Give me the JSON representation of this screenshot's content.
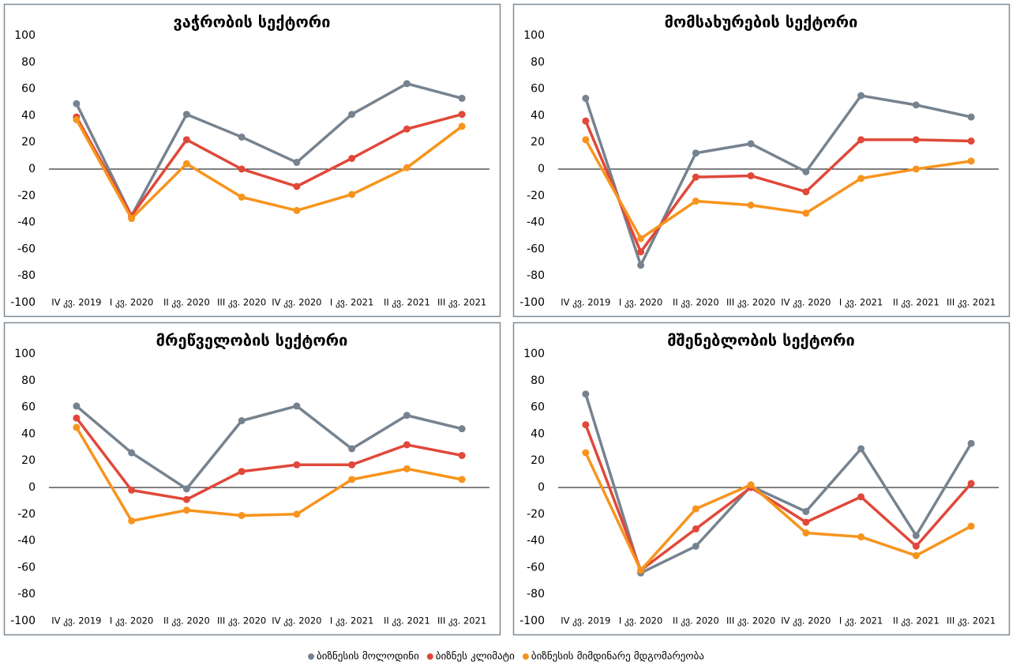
{
  "chart_data": [
    {
      "type": "line",
      "title": "ვაჭრობის სექტორი",
      "categories": [
        "IV კვ. 2019",
        "I კვ. 2020",
        "II კვ. 2020",
        "III კვ. 2020",
        "IV კვ. 2020",
        "I კვ. 2021",
        "II კვ. 2021",
        "III კვ. 2021"
      ],
      "series": [
        {
          "name": "ბიზნესის მოლოდინი",
          "color": "#76838f",
          "values": [
            49,
            -35,
            41,
            24,
            5,
            41,
            64,
            53
          ]
        },
        {
          "name": "ბიზნეს კლიმატი",
          "color": "#e0483a",
          "values": [
            39,
            -35,
            22,
            0,
            -13,
            8,
            30,
            41
          ]
        },
        {
          "name": "ბიზნესის მიმდინარე მდგომარეობა",
          "color": "#f7941d",
          "values": [
            37,
            -37,
            4,
            -21,
            -31,
            -19,
            1,
            32
          ]
        }
      ],
      "ylim": [
        -100,
        100
      ],
      "yticks": [
        -100,
        -80,
        -60,
        -40,
        -20,
        0,
        20,
        40,
        60,
        80,
        100
      ]
    },
    {
      "type": "line",
      "title": "მომსახურების სექტორი",
      "categories": [
        "IV კვ. 2019",
        "I კვ. 2020",
        "II კვ. 2020",
        "III კვ. 2020",
        "IV კვ. 2020",
        "I კვ. 2021",
        "II კვ. 2021",
        "III კვ. 2021"
      ],
      "series": [
        {
          "name": "ბიზნესის მოლოდინი",
          "color": "#76838f",
          "values": [
            53,
            -72,
            12,
            19,
            -2,
            55,
            48,
            39
          ]
        },
        {
          "name": "ბიზნეს კლიმატი",
          "color": "#e0483a",
          "values": [
            36,
            -62,
            -6,
            -5,
            -17,
            22,
            22,
            21
          ]
        },
        {
          "name": "ბიზნესის მიმდინარე მდგომარეობა",
          "color": "#f7941d",
          "values": [
            22,
            -52,
            -24,
            -27,
            -33,
            -7,
            0,
            6
          ]
        }
      ],
      "ylim": [
        -100,
        100
      ],
      "yticks": [
        -100,
        -80,
        -60,
        -40,
        -20,
        0,
        20,
        40,
        60,
        80,
        100
      ]
    },
    {
      "type": "line",
      "title": "მრეწველობის სექტორი",
      "categories": [
        "IV კვ. 2019",
        "I კვ. 2020",
        "II კვ. 2020",
        "III კვ. 2020",
        "IV კვ. 2020",
        "I კვ. 2021",
        "II კვ. 2021",
        "III კვ. 2021"
      ],
      "series": [
        {
          "name": "ბიზნესის მოლოდინი",
          "color": "#76838f",
          "values": [
            61,
            26,
            -1,
            50,
            61,
            29,
            54,
            44
          ]
        },
        {
          "name": "ბიზნეს კლიმატი",
          "color": "#e0483a",
          "values": [
            52,
            -2,
            -9,
            12,
            17,
            17,
            32,
            24
          ]
        },
        {
          "name": "ბიზნესის მიმდინარე მდგომარეობა",
          "color": "#f7941d",
          "values": [
            45,
            -25,
            -17,
            -21,
            -20,
            6,
            14,
            6
          ]
        }
      ],
      "ylim": [
        -100,
        100
      ],
      "yticks": [
        -100,
        -80,
        -60,
        -40,
        -20,
        0,
        20,
        40,
        60,
        80,
        100
      ]
    },
    {
      "type": "line",
      "title": "მშენებლობის სექტორი",
      "categories": [
        "IV კვ. 2019",
        "I კვ. 2020",
        "II კვ. 2020",
        "III კვ. 2020",
        "IV კვ. 2020",
        "I კვ. 2021",
        "II კვ. 2021",
        "III კვ. 2021"
      ],
      "series": [
        {
          "name": "ბიზნესის მოლოდინი",
          "color": "#76838f",
          "values": [
            70,
            -64,
            -44,
            1,
            -18,
            29,
            -36,
            33
          ]
        },
        {
          "name": "ბიზნეს კლიმატი",
          "color": "#e0483a",
          "values": [
            47,
            -62,
            -31,
            0,
            -26,
            -7,
            -44,
            3
          ]
        },
        {
          "name": "ბიზნესის მიმდინარე მდგომარეობა",
          "color": "#f7941d",
          "values": [
            26,
            -62,
            -16,
            2,
            -34,
            -37,
            -51,
            -29
          ]
        }
      ],
      "ylim": [
        -100,
        100
      ],
      "yticks": [
        -100,
        -80,
        -60,
        -40,
        -20,
        0,
        20,
        40,
        60,
        80,
        100
      ]
    }
  ]
}
